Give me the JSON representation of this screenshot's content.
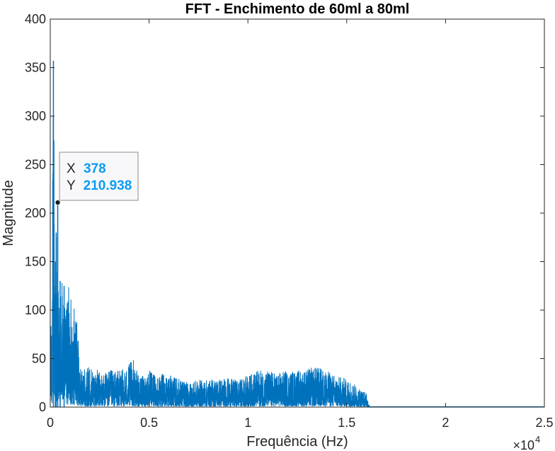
{
  "chart_data": {
    "type": "line",
    "title": "FFT - Enchimento de 60ml a 80ml",
    "xlabel": "Frequência (Hz)",
    "ylabel": "Magnitude",
    "xlim": [
      0,
      25000
    ],
    "ylim": [
      0,
      400
    ],
    "x_exponent_label": "×10",
    "x_exponent_power": "4",
    "x_ticks": [
      0,
      5000,
      10000,
      15000,
      20000,
      25000
    ],
    "x_tick_labels": [
      "0",
      "0.5",
      "1",
      "1.5",
      "2",
      "2.5"
    ],
    "y_ticks": [
      0,
      50,
      100,
      150,
      200,
      250,
      300,
      350,
      400
    ],
    "y_tick_labels": [
      "0",
      "50",
      "100",
      "150",
      "200",
      "250",
      "300",
      "350",
      "400"
    ],
    "grid": true,
    "line_color": "#0072BD",
    "envelope_points": [
      [
        0,
        60
      ],
      [
        80,
        120
      ],
      [
        120,
        250
      ],
      [
        160,
        357
      ],
      [
        200,
        300
      ],
      [
        260,
        150
      ],
      [
        300,
        180
      ],
      [
        340,
        120
      ],
      [
        378,
        211
      ],
      [
        420,
        80
      ],
      [
        500,
        130
      ],
      [
        600,
        150
      ],
      [
        650,
        90
      ],
      [
        700,
        125
      ],
      [
        800,
        110
      ],
      [
        900,
        130
      ],
      [
        1000,
        110
      ],
      [
        1100,
        125
      ],
      [
        1200,
        110
      ],
      [
        1300,
        100
      ],
      [
        1400,
        80
      ],
      [
        1500,
        40
      ],
      [
        1700,
        40
      ],
      [
        2000,
        42
      ],
      [
        2300,
        40
      ],
      [
        2600,
        35
      ],
      [
        3000,
        38
      ],
      [
        3400,
        38
      ],
      [
        3800,
        40
      ],
      [
        4000,
        45
      ],
      [
        4200,
        50
      ],
      [
        4500,
        30
      ],
      [
        5000,
        38
      ],
      [
        5500,
        35
      ],
      [
        6000,
        33
      ],
      [
        6500,
        30
      ],
      [
        7000,
        25
      ],
      [
        7500,
        28
      ],
      [
        8000,
        28
      ],
      [
        8500,
        30
      ],
      [
        9000,
        30
      ],
      [
        9500,
        28
      ],
      [
        10000,
        33
      ],
      [
        10500,
        38
      ],
      [
        11000,
        38
      ],
      [
        11500,
        35
      ],
      [
        12000,
        38
      ],
      [
        12500,
        38
      ],
      [
        13000,
        40
      ],
      [
        13500,
        42
      ],
      [
        14000,
        38
      ],
      [
        14500,
        32
      ],
      [
        15000,
        30
      ],
      [
        15500,
        22
      ],
      [
        16000,
        15
      ],
      [
        16100,
        3
      ],
      [
        16200,
        0.5
      ],
      [
        25000,
        0.5
      ]
    ],
    "datatip": {
      "x_label": "X",
      "x_value": "378",
      "y_label": "Y",
      "y_value": "210.938",
      "x": 378,
      "y": 210.938
    }
  }
}
